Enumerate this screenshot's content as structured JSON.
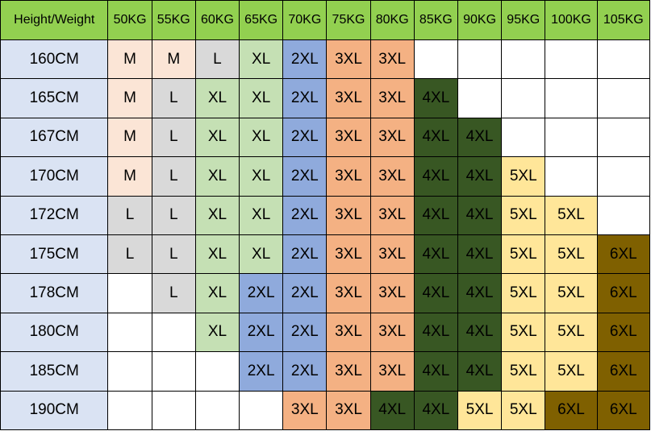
{
  "table": {
    "corner": "Height/Weight",
    "weights": [
      "50KG",
      "55KG",
      "60KG",
      "65KG",
      "70KG",
      "75KG",
      "80KG",
      "85KG",
      "90KG",
      "95KG",
      "100KG",
      "105KG"
    ],
    "rows": [
      {
        "height": "160CM",
        "cells": [
          "M",
          "M",
          "L",
          "XL",
          "2XL",
          "3XL",
          "3XL",
          "",
          "",
          "",
          "",
          ""
        ]
      },
      {
        "height": "165CM",
        "cells": [
          "M",
          "L",
          "XL",
          "XL",
          "2XL",
          "3XL",
          "3XL",
          "4XL",
          "",
          "",
          "",
          ""
        ]
      },
      {
        "height": "167CM",
        "cells": [
          "M",
          "L",
          "XL",
          "XL",
          "2XL",
          "3XL",
          "3XL",
          "4XL",
          "4XL",
          "",
          "",
          ""
        ]
      },
      {
        "height": "170CM",
        "cells": [
          "M",
          "L",
          "XL",
          "XL",
          "2XL",
          "3XL",
          "3XL",
          "4XL",
          "4XL",
          "5XL",
          "",
          ""
        ]
      },
      {
        "height": "172CM",
        "cells": [
          "L",
          "L",
          "XL",
          "XL",
          "2XL",
          "3XL",
          "3XL",
          "4XL",
          "4XL",
          "5XL",
          "5XL",
          ""
        ]
      },
      {
        "height": "175CM",
        "cells": [
          "L",
          "L",
          "XL",
          "XL",
          "2XL",
          "3XL",
          "3XL",
          "4XL",
          "4XL",
          "5XL",
          "5XL",
          "6XL"
        ]
      },
      {
        "height": "178CM",
        "cells": [
          "",
          "L",
          "XL",
          "2XL",
          "2XL",
          "3XL",
          "3XL",
          "4XL",
          "4XL",
          "5XL",
          "5XL",
          "6XL"
        ]
      },
      {
        "height": "180CM",
        "cells": [
          "",
          "",
          "XL",
          "2XL",
          "2XL",
          "3XL",
          "3XL",
          "4XL",
          "4XL",
          "5XL",
          "5XL",
          "6XL"
        ]
      },
      {
        "height": "185CM",
        "cells": [
          "",
          "",
          "",
          "2XL",
          "2XL",
          "3XL",
          "3XL",
          "4XL",
          "4XL",
          "5XL",
          "5XL",
          "6XL"
        ]
      },
      {
        "height": "190CM",
        "cells": [
          "",
          "",
          "",
          "",
          "3XL",
          "3XL",
          "4XL",
          "4XL",
          "5XL",
          "5XL",
          "6XL",
          "6XL"
        ]
      }
    ]
  },
  "colors": {
    "header_bg": "#92d050",
    "row_head_bg": "#dae3f3",
    "sizes": {
      "M": "#fbe5d6",
      "L": "#d9d9d9",
      "XL": "#c5e0b4",
      "2XL": "#8faadc",
      "3XL": "#f4b183",
      "4XL": "#385723",
      "5XL": "#ffe699",
      "6XL": "#7f6000"
    }
  }
}
